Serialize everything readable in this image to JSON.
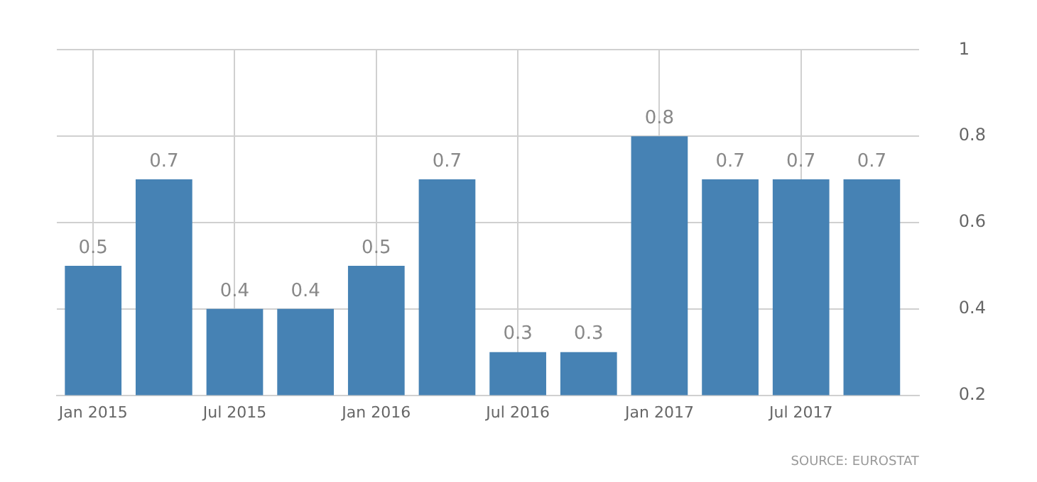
{
  "chart_data": {
    "type": "bar",
    "x": [
      "2015-01",
      "2015-04",
      "2015-07",
      "2015-10",
      "2016-01",
      "2016-04",
      "2016-07",
      "2016-10",
      "2017-01",
      "2017-04",
      "2017-07",
      "2017-10"
    ],
    "series": [
      {
        "color": "#4682b4",
        "values": [
          0.5,
          0.7,
          0.4,
          0.4,
          0.5,
          0.7,
          0.3,
          0.3,
          0.8,
          0.7,
          0.7,
          0.7
        ]
      }
    ],
    "xlim": [
      "2014-11-15",
      "2017-12-01"
    ],
    "xticks": [
      {
        "value": "2015-01",
        "label": "Jan 2015"
      },
      {
        "value": "2015-07",
        "label": "Jul 2015"
      },
      {
        "value": "2016-01",
        "label": "Jan 2016"
      },
      {
        "value": "2016-07",
        "label": "Jul 2016"
      },
      {
        "value": "2017-01",
        "label": "Jan 2017"
      },
      {
        "value": "2017-07",
        "label": "Jul 2017"
      }
    ],
    "ylim": [
      0.2,
      1
    ],
    "yticks": [
      0.2,
      0.4,
      0.6,
      0.8,
      1
    ],
    "grid": true,
    "legend": false,
    "data_labels": true,
    "annotations": [
      "SOURCE: EUROSTAT"
    ]
  }
}
